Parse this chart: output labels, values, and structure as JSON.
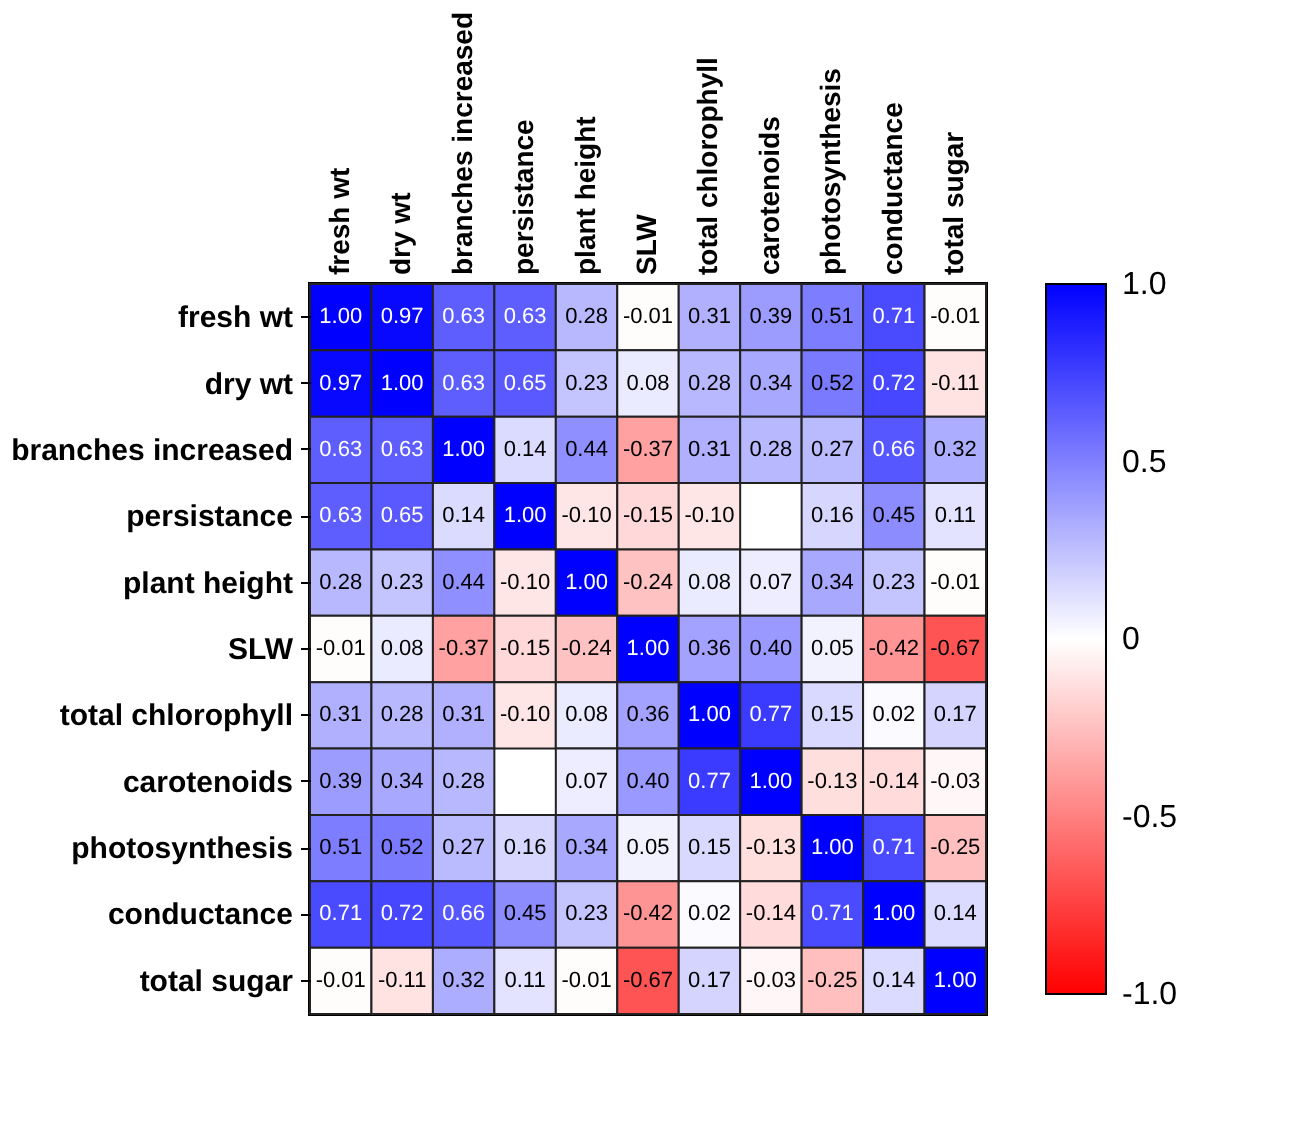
{
  "chart_data": {
    "type": "heatmap",
    "categories": [
      "fresh wt",
      "dry wt",
      "branches increased",
      "persistance",
      "plant height",
      "SLW",
      "total chlorophyll",
      "carotenoids",
      "photosynthesis",
      "conductance",
      "total sugar"
    ],
    "y_categories": [
      "fresh wt",
      "dry wt",
      "branches increased",
      "persistance",
      "plant height",
      "SLW",
      "total chlorophyll",
      "carotenoids",
      "photosynthesis",
      "conductance",
      "total sugar"
    ],
    "cells": [
      [
        1.0,
        0.97,
        0.63,
        0.63,
        0.28,
        -0.01,
        0.31,
        0.39,
        0.51,
        0.71,
        -0.01
      ],
      [
        0.97,
        1.0,
        0.63,
        0.65,
        0.23,
        0.08,
        0.28,
        0.34,
        0.52,
        0.72,
        -0.11
      ],
      [
        0.63,
        0.63,
        1.0,
        0.14,
        0.44,
        -0.37,
        0.31,
        0.28,
        0.27,
        0.66,
        0.32
      ],
      [
        0.63,
        0.65,
        0.14,
        1.0,
        -0.1,
        -0.15,
        -0.1,
        null,
        0.16,
        0.45,
        0.11
      ],
      [
        0.28,
        0.23,
        0.44,
        -0.1,
        1.0,
        -0.24,
        0.08,
        0.07,
        0.34,
        0.23,
        -0.01
      ],
      [
        -0.01,
        0.08,
        -0.37,
        -0.15,
        -0.24,
        1.0,
        0.36,
        0.4,
        0.05,
        -0.42,
        -0.67
      ],
      [
        0.31,
        0.28,
        0.31,
        -0.1,
        0.08,
        0.36,
        1.0,
        0.77,
        0.15,
        0.02,
        0.17
      ],
      [
        0.39,
        0.34,
        0.28,
        null,
        0.07,
        0.4,
        0.77,
        1.0,
        -0.13,
        -0.14,
        -0.03
      ],
      [
        0.51,
        0.52,
        0.27,
        0.16,
        0.34,
        0.05,
        0.15,
        -0.13,
        1.0,
        0.71,
        -0.25
      ],
      [
        0.71,
        0.72,
        0.66,
        0.45,
        0.23,
        -0.42,
        0.02,
        -0.14,
        0.71,
        1.0,
        0.14
      ],
      [
        -0.01,
        -0.11,
        0.32,
        0.11,
        -0.01,
        -0.67,
        0.17,
        -0.03,
        -0.25,
        0.14,
        1.0
      ]
    ],
    "cell_labels": [
      [
        "1.00",
        "0.97",
        "0.63",
        "0.63",
        "0.28",
        "-0.01",
        "0.31",
        "0.39",
        "0.51",
        "0.71",
        "-0.01"
      ],
      [
        "0.97",
        "1.00",
        "0.63",
        "0.65",
        "0.23",
        "0.08",
        "0.28",
        "0.34",
        "0.52",
        "0.72",
        "-0.11"
      ],
      [
        "0.63",
        "0.63",
        "1.00",
        "0.14",
        "0.44",
        "-0.37",
        "0.31",
        "0.28",
        "0.27",
        "0.66",
        "0.32"
      ],
      [
        "0.63",
        "0.65",
        "0.14",
        "1.00",
        "-0.10",
        "-0.15",
        "-0.10",
        null,
        "0.16",
        "0.45",
        "0.11"
      ],
      [
        "0.28",
        "0.23",
        "0.44",
        "-0.10",
        "1.00",
        "-0.24",
        "0.08",
        "0.07",
        "0.34",
        "0.23",
        "-0.01"
      ],
      [
        "-0.01",
        "0.08",
        "-0.37",
        "-0.15",
        "-0.24",
        "1.00",
        "0.36",
        "0.40",
        "0.05",
        "-0.42",
        "-0.67"
      ],
      [
        "0.31",
        "0.28",
        "0.31",
        "-0.10",
        "0.08",
        "0.36",
        "1.00",
        "0.77",
        "0.15",
        "0.02",
        "0.17"
      ],
      [
        "0.39",
        "0.34",
        "0.28",
        null,
        "0.07",
        "0.40",
        "0.77",
        "1.00",
        "-0.13",
        "-0.14",
        "-0.03"
      ],
      [
        "0.51",
        "0.52",
        "0.27",
        "0.16",
        "0.34",
        "0.05",
        "0.15",
        "-0.13",
        "1.00",
        "0.71",
        "-0.25"
      ],
      [
        "0.71",
        "0.72",
        "0.66",
        "0.45",
        "0.23",
        "-0.42",
        "0.02",
        "-0.14",
        "0.71",
        "1.00",
        "0.14"
      ],
      [
        "-0.01",
        "-0.11",
        "0.32",
        "0.11",
        "-0.01",
        "-0.67",
        "0.17",
        "-0.03",
        "-0.25",
        "0.14",
        "1.00"
      ]
    ],
    "data_labels": true,
    "clim": [
      -1,
      1
    ],
    "cticks": [
      {
        "value": 1,
        "label": "1.0"
      },
      {
        "value": 0.5,
        "label": "0.5"
      },
      {
        "value": 0,
        "label": "0"
      },
      {
        "value": -0.5,
        "label": "-0.5"
      },
      {
        "value": -1,
        "label": "-1.0"
      }
    ]
  }
}
